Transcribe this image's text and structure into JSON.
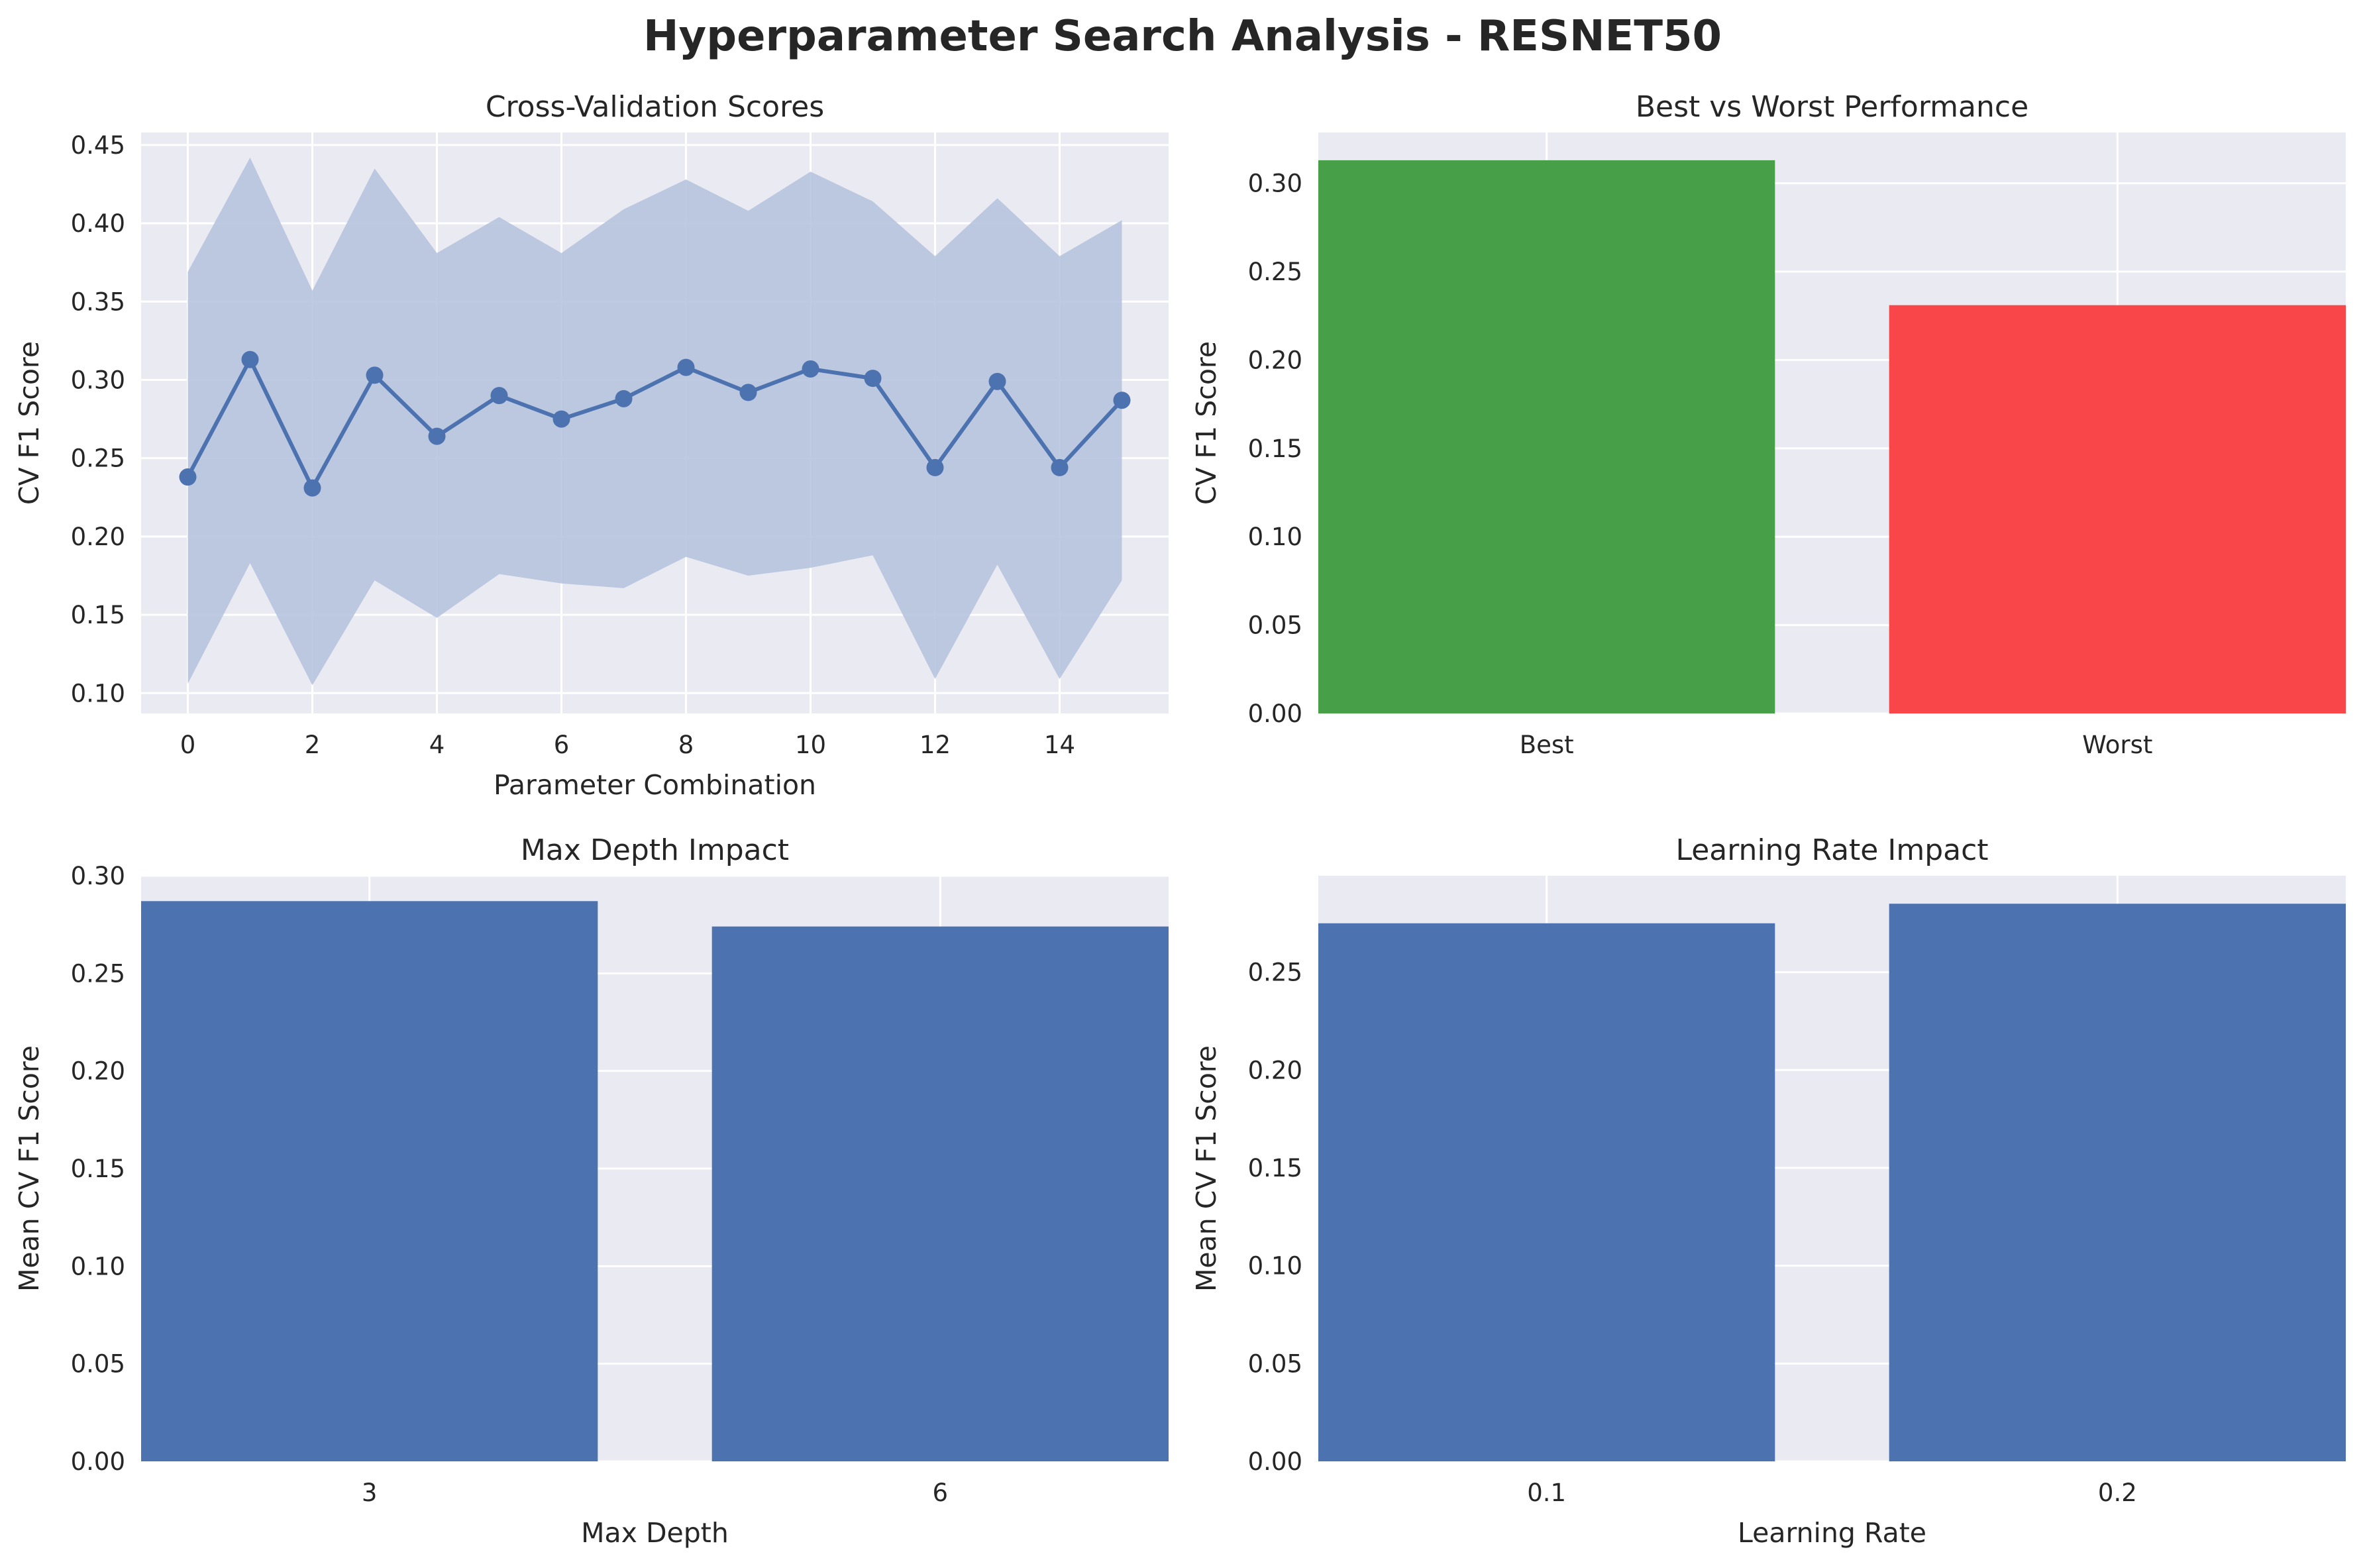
{
  "figure": {
    "title": "Hyperparameter Search Analysis - RESNET50"
  },
  "colors": {
    "panel_bg": "#eaeaf2",
    "grid": "#ffffff",
    "line": "#4c72b0",
    "band": "#b7c4de",
    "bar": "#4c72b0",
    "best": "#47a047",
    "worst": "#f84649"
  },
  "chart_data": [
    {
      "id": "cv",
      "type": "line",
      "title": "Cross-Validation Scores",
      "xlabel": "Parameter Combination",
      "ylabel": "CV F1 Score",
      "x": [
        0,
        1,
        2,
        3,
        4,
        5,
        6,
        7,
        8,
        9,
        10,
        11,
        12,
        13,
        14,
        15
      ],
      "series": [
        {
          "values": [
            0.238,
            0.313,
            0.231,
            0.303,
            0.264,
            0.29,
            0.275,
            0.288,
            0.308,
            0.292,
            0.307,
            0.301,
            0.244,
            0.299,
            0.244,
            0.287
          ]
        }
      ],
      "band_upper": [
        0.369,
        0.442,
        0.357,
        0.435,
        0.381,
        0.404,
        0.381,
        0.409,
        0.428,
        0.408,
        0.433,
        0.414,
        0.379,
        0.416,
        0.379,
        0.402
      ],
      "band_lower": [
        0.106,
        0.183,
        0.105,
        0.172,
        0.148,
        0.176,
        0.17,
        0.167,
        0.187,
        0.175,
        0.18,
        0.188,
        0.109,
        0.182,
        0.109,
        0.172
      ],
      "xlim": [
        -0.75,
        15.75
      ],
      "ylim": [
        0.087,
        0.458
      ],
      "xticks": [
        0,
        2,
        4,
        6,
        8,
        10,
        12,
        14
      ],
      "xtick_labels": [
        "0",
        "2",
        "4",
        "6",
        "8",
        "10",
        "12",
        "14"
      ],
      "yticks": [
        0.1,
        0.15,
        0.2,
        0.25,
        0.3,
        0.35,
        0.4,
        0.45
      ],
      "ytick_labels": [
        "0.10",
        "0.15",
        "0.20",
        "0.25",
        "0.30",
        "0.35",
        "0.40",
        "0.45"
      ],
      "grid": true
    },
    {
      "id": "bw",
      "type": "bar",
      "title": "Best vs Worst Performance",
      "xlabel": "",
      "ylabel": "CV F1 Score",
      "categories": [
        "Best",
        "Worst"
      ],
      "values": [
        0.313,
        0.231
      ],
      "bar_colors": [
        "#47a047",
        "#f84649"
      ],
      "ylim": [
        0,
        0.3287
      ],
      "yticks": [
        0,
        0.05,
        0.1,
        0.15,
        0.2,
        0.25,
        0.3
      ],
      "ytick_labels": [
        "0.00",
        "0.05",
        "0.10",
        "0.15",
        "0.20",
        "0.25",
        "0.30"
      ],
      "grid": true
    },
    {
      "id": "md",
      "type": "bar",
      "title": "Max Depth Impact",
      "xlabel": "Max Depth",
      "ylabel": "Mean CV F1 Score",
      "categories": [
        "3",
        "6"
      ],
      "values": [
        0.287,
        0.274
      ],
      "ylim": [
        0,
        0.3
      ],
      "yticks": [
        0,
        0.05,
        0.1,
        0.15,
        0.2,
        0.25,
        0.3
      ],
      "ytick_labels": [
        "0.00",
        "0.05",
        "0.10",
        "0.15",
        "0.20",
        "0.25",
        "0.30"
      ],
      "grid": true
    },
    {
      "id": "lr",
      "type": "bar",
      "title": "Learning Rate Impact",
      "xlabel": "Learning Rate",
      "ylabel": "Mean CV F1 Score",
      "categories": [
        "0.1",
        "0.2"
      ],
      "values": [
        0.275,
        0.285
      ],
      "ylim": [
        0,
        0.2993
      ],
      "yticks": [
        0,
        0.05,
        0.1,
        0.15,
        0.2,
        0.25
      ],
      "ytick_labels": [
        "0.00",
        "0.05",
        "0.10",
        "0.15",
        "0.20",
        "0.25"
      ],
      "grid": true
    }
  ]
}
